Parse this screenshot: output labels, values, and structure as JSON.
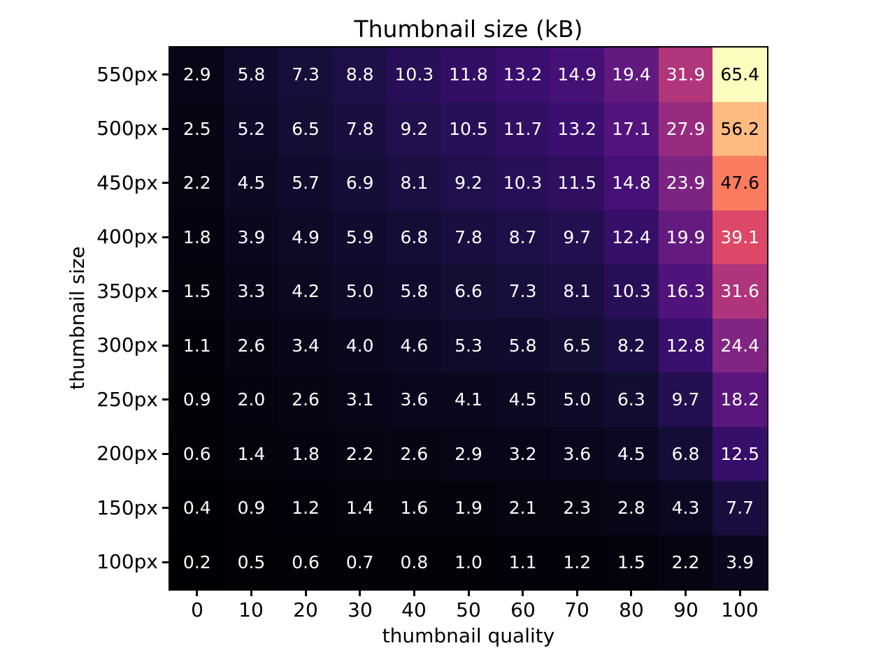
{
  "chart_data": {
    "type": "heatmap",
    "title": "Thumbnail size (kB)",
    "xlabel": "thumbnail quality",
    "ylabel": "thumbnail size",
    "x_ticks": [
      "0",
      "10",
      "20",
      "30",
      "40",
      "50",
      "60",
      "70",
      "80",
      "90",
      "100"
    ],
    "y_ticks": [
      "550px",
      "500px",
      "450px",
      "400px",
      "350px",
      "300px",
      "250px",
      "200px",
      "150px",
      "100px"
    ],
    "values": [
      [
        2.9,
        5.8,
        7.3,
        8.8,
        10.3,
        11.8,
        13.2,
        14.9,
        19.4,
        31.9,
        65.4
      ],
      [
        2.5,
        5.2,
        6.5,
        7.8,
        9.2,
        10.5,
        11.7,
        13.2,
        17.1,
        27.9,
        56.2
      ],
      [
        2.2,
        4.5,
        5.7,
        6.9,
        8.1,
        9.2,
        10.3,
        11.5,
        14.8,
        23.9,
        47.6
      ],
      [
        1.8,
        3.9,
        4.9,
        5.9,
        6.8,
        7.8,
        8.7,
        9.7,
        12.4,
        19.9,
        39.1
      ],
      [
        1.5,
        3.3,
        4.2,
        5.0,
        5.8,
        6.6,
        7.3,
        8.1,
        10.3,
        16.3,
        31.6
      ],
      [
        1.1,
        2.6,
        3.4,
        4.0,
        4.6,
        5.3,
        5.8,
        6.5,
        8.2,
        12.8,
        24.4
      ],
      [
        0.9,
        2.0,
        2.6,
        3.1,
        3.6,
        4.1,
        4.5,
        5.0,
        6.3,
        9.7,
        18.2
      ],
      [
        0.6,
        1.4,
        1.8,
        2.2,
        2.6,
        2.9,
        3.2,
        3.6,
        4.5,
        6.8,
        12.5
      ],
      [
        0.4,
        0.9,
        1.2,
        1.4,
        1.6,
        1.9,
        2.1,
        2.3,
        2.8,
        4.3,
        7.7
      ],
      [
        0.2,
        0.5,
        0.6,
        0.7,
        0.8,
        1.0,
        1.1,
        1.2,
        1.5,
        2.2,
        3.9
      ]
    ],
    "value_decimals": 1,
    "vmin": 0.2,
    "vmax": 65.4,
    "colormap": "magma",
    "colormap_stops": [
      {
        "t": 0.0,
        "color": "#000004"
      },
      {
        "t": 0.05,
        "color": "#08071a"
      },
      {
        "t": 0.1,
        "color": "#140e36"
      },
      {
        "t": 0.15,
        "color": "#260f54"
      },
      {
        "t": 0.2,
        "color": "#3b0f70"
      },
      {
        "t": 0.25,
        "color": "#51127c"
      },
      {
        "t": 0.3,
        "color": "#641a80"
      },
      {
        "t": 0.35,
        "color": "#782282"
      },
      {
        "t": 0.4,
        "color": "#8c2981"
      },
      {
        "t": 0.45,
        "color": "#a1307e"
      },
      {
        "t": 0.5,
        "color": "#b73779"
      },
      {
        "t": 0.55,
        "color": "#cd4071"
      },
      {
        "t": 0.6,
        "color": "#de4968"
      },
      {
        "t": 0.65,
        "color": "#ec565f"
      },
      {
        "t": 0.7,
        "color": "#f7705c"
      },
      {
        "t": 0.75,
        "color": "#fb8761"
      },
      {
        "t": 0.8,
        "color": "#fe9f6d"
      },
      {
        "t": 0.85,
        "color": "#feb67e"
      },
      {
        "t": 0.9,
        "color": "#fecd90"
      },
      {
        "t": 0.95,
        "color": "#fde2a3"
      },
      {
        "t": 1.0,
        "color": "#fcfdbf"
      }
    ],
    "annotation_color_dark_cells": "#ffffff",
    "annotation_color_light_cells": "#000000",
    "axis_color": "#000000",
    "background_color": "#ffffff",
    "legend": "none",
    "grid": "off"
  }
}
